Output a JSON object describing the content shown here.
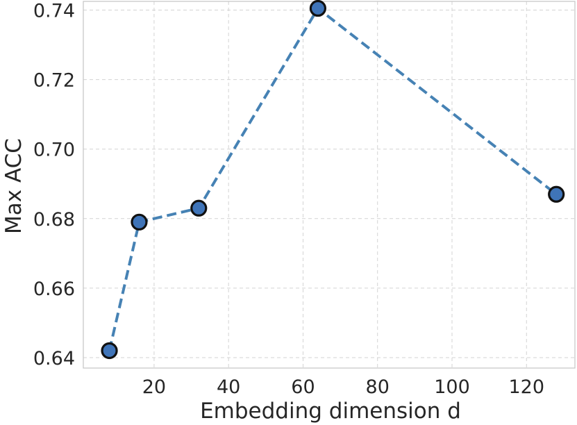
{
  "chart_data": {
    "type": "line",
    "title": "",
    "xlabel": "Embedding dimension d",
    "ylabel": "Max ACC",
    "xlim": [
      1,
      133
    ],
    "ylim": [
      0.637,
      0.7425
    ],
    "xticks": [
      20,
      40,
      60,
      80,
      100,
      120
    ],
    "xtick_labels": [
      "20",
      "40",
      "60",
      "80",
      "100",
      "120"
    ],
    "yticks": [
      0.64,
      0.66,
      0.68,
      0.7,
      0.72,
      0.74
    ],
    "ytick_labels": [
      "0.64",
      "0.66",
      "0.68",
      "0.70",
      "0.72",
      "0.74"
    ],
    "grid": true,
    "legend": "none",
    "series": [
      {
        "x": [
          8,
          16,
          32,
          64,
          128
        ],
        "values": [
          0.642,
          0.679,
          0.683,
          0.7405,
          0.687
        ],
        "color": "#4682b4",
        "marker_fill": "#3f74b8",
        "marker_edge": "#111111",
        "line_style": "dashed",
        "marker": "circle"
      }
    ]
  }
}
